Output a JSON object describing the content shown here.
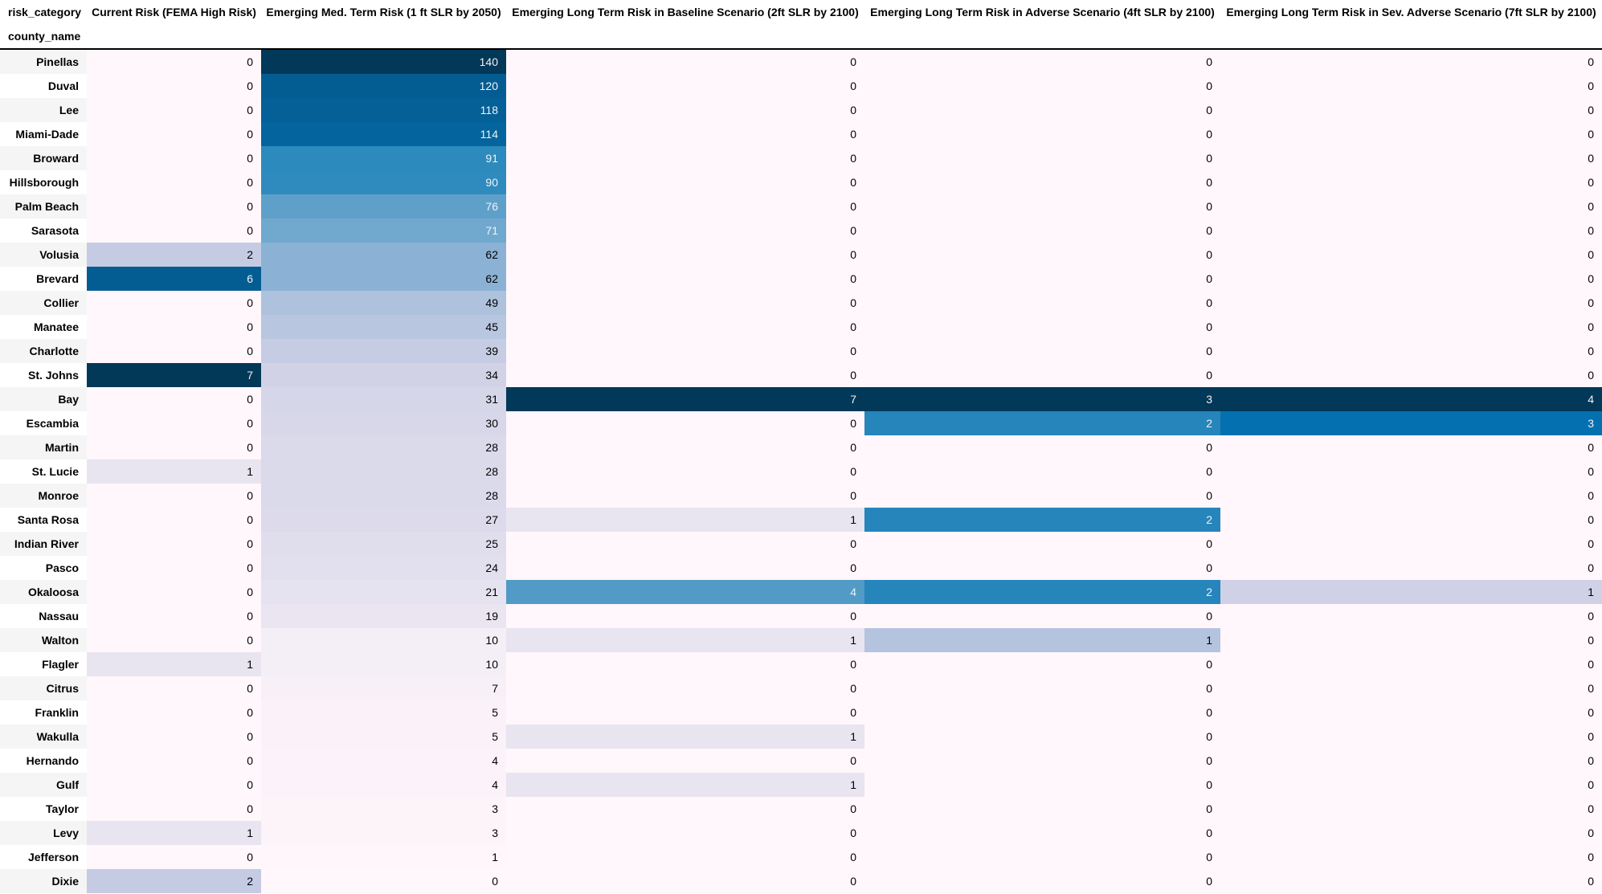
{
  "table": {
    "columns_axis_label": "risk_category",
    "index_axis_label": "county_name",
    "columns": [
      "Current Risk (FEMA High Risk)",
      "Emerging Med. Term Risk (1 ft SLR by 2050)",
      "Emerging Long Term Risk in Baseline Scenario (2ft SLR by 2100)",
      "Emerging Long Term Risk in Adverse Scenario (4ft SLR by 2100)",
      "Emerging Long Term Risk in Sev. Adverse Scenario (7ft SLR by 2100)"
    ]
  },
  "colors": {
    "colormap": "PuBu",
    "pubu_stops": [
      "#fff7fb",
      "#ece7f2",
      "#d0d1e6",
      "#a6bddb",
      "#74a9cf",
      "#3690c0",
      "#0570b0",
      "#045a8d",
      "#023858"
    ],
    "row_stripe": "#f5f5f5",
    "row_plain": "#ffffff",
    "dark_text": "#000000",
    "light_text": "#f1f1f1",
    "header_border": "#000000",
    "background": "#ffffff"
  },
  "chart_data": {
    "type": "heatmap",
    "title": "",
    "xlabel": "risk_category",
    "ylabel": "county_name",
    "colormap": "PuBu",
    "normalization": "per-column min-max",
    "legend": "none",
    "columns": [
      "Current Risk (FEMA High Risk)",
      "Emerging Med. Term Risk (1 ft SLR by 2050)",
      "Emerging Long Term Risk in Baseline Scenario (2ft SLR by 2100)",
      "Emerging Long Term Risk in Adverse Scenario (4ft SLR by 2100)",
      "Emerging Long Term Risk in Sev. Adverse Scenario (7ft SLR by 2100)"
    ],
    "counties": [
      "Pinellas",
      "Duval",
      "Lee",
      "Miami-Dade",
      "Broward",
      "Hillsborough",
      "Palm Beach",
      "Sarasota",
      "Volusia",
      "Brevard",
      "Collier",
      "Manatee",
      "Charlotte",
      "St. Johns",
      "Bay",
      "Escambia",
      "Martin",
      "St. Lucie",
      "Monroe",
      "Santa Rosa",
      "Indian River",
      "Pasco",
      "Okaloosa",
      "Nassau",
      "Walton",
      "Flagler",
      "Citrus",
      "Franklin",
      "Wakulla",
      "Hernando",
      "Gulf",
      "Taylor",
      "Levy",
      "Jefferson",
      "Dixie"
    ],
    "values": [
      [
        0,
        140,
        0,
        0,
        0
      ],
      [
        0,
        120,
        0,
        0,
        0
      ],
      [
        0,
        118,
        0,
        0,
        0
      ],
      [
        0,
        114,
        0,
        0,
        0
      ],
      [
        0,
        91,
        0,
        0,
        0
      ],
      [
        0,
        90,
        0,
        0,
        0
      ],
      [
        0,
        76,
        0,
        0,
        0
      ],
      [
        0,
        71,
        0,
        0,
        0
      ],
      [
        2,
        62,
        0,
        0,
        0
      ],
      [
        6,
        62,
        0,
        0,
        0
      ],
      [
        0,
        49,
        0,
        0,
        0
      ],
      [
        0,
        45,
        0,
        0,
        0
      ],
      [
        0,
        39,
        0,
        0,
        0
      ],
      [
        7,
        34,
        0,
        0,
        0
      ],
      [
        0,
        31,
        7,
        3,
        4
      ],
      [
        0,
        30,
        0,
        2,
        3
      ],
      [
        0,
        28,
        0,
        0,
        0
      ],
      [
        1,
        28,
        0,
        0,
        0
      ],
      [
        0,
        28,
        0,
        0,
        0
      ],
      [
        0,
        27,
        1,
        2,
        0
      ],
      [
        0,
        25,
        0,
        0,
        0
      ],
      [
        0,
        24,
        0,
        0,
        0
      ],
      [
        0,
        21,
        4,
        2,
        1
      ],
      [
        0,
        19,
        0,
        0,
        0
      ],
      [
        0,
        10,
        1,
        1,
        0
      ],
      [
        1,
        10,
        0,
        0,
        0
      ],
      [
        0,
        7,
        0,
        0,
        0
      ],
      [
        0,
        5,
        0,
        0,
        0
      ],
      [
        0,
        5,
        1,
        0,
        0
      ],
      [
        0,
        4,
        0,
        0,
        0
      ],
      [
        0,
        4,
        1,
        0,
        0
      ],
      [
        0,
        3,
        0,
        0,
        0
      ],
      [
        1,
        3,
        0,
        0,
        0
      ],
      [
        0,
        1,
        0,
        0,
        0
      ],
      [
        2,
        0,
        0,
        0,
        0
      ]
    ]
  }
}
